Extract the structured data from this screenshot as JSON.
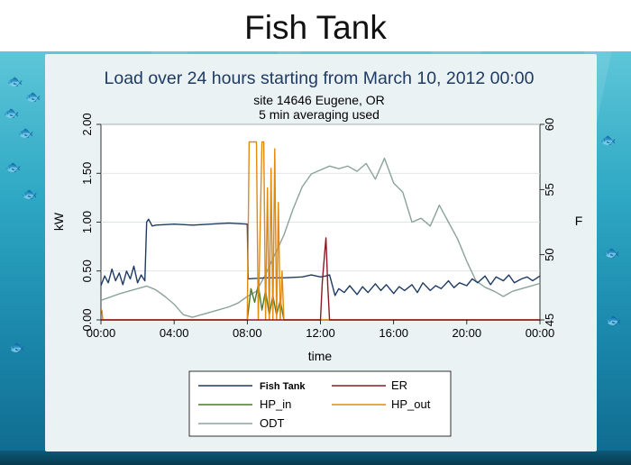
{
  "slide": {
    "title": "Fish Tank"
  },
  "chart_data": {
    "type": "line",
    "title": "Load over 24 hours starting from March 10, 2012 00:00",
    "subtitle_lines": [
      "site 14646  Eugene, OR",
      "5 min averaging used"
    ],
    "xlabel": "time",
    "ylabel": "kW",
    "y2label": "F",
    "xlim": [
      0,
      24
    ],
    "ylim": [
      0,
      2
    ],
    "y2lim": [
      45,
      60
    ],
    "x_ticks": [
      0,
      4,
      8,
      12,
      16,
      20,
      24
    ],
    "x_tick_labels": [
      "00:00",
      "04:00",
      "08:00",
      "12:00",
      "16:00",
      "20:00",
      "00:00"
    ],
    "y_ticks": [
      0,
      0.5,
      1,
      1.5,
      2
    ],
    "y_tick_labels": [
      "0.00",
      "0.50",
      "1.00",
      "1.50",
      "2.00"
    ],
    "y2_ticks": [
      45,
      50,
      55,
      60
    ],
    "y2_tick_labels": [
      "45",
      "50",
      "55",
      "60"
    ],
    "grid": true,
    "legend_placement": "bottom",
    "legend_entries": [
      "Fish Tank",
      "ER",
      "HP_in",
      "HP_out",
      "ODT"
    ],
    "colors": {
      "Fish Tank": "#1f3b63",
      "ER": "#8b1a24",
      "HP_in": "#4a7a2a",
      "HP_out": "#e08a10",
      "ODT": "#8aa39a"
    },
    "series": [
      {
        "name": "Fish Tank",
        "axis": "left",
        "x": [
          0,
          0.2,
          0.4,
          0.6,
          0.8,
          1.0,
          1.2,
          1.4,
          1.6,
          1.8,
          2.0,
          2.2,
          2.4,
          2.5,
          2.6,
          2.8,
          3,
          4,
          5,
          6,
          7,
          8,
          8.05,
          9,
          10,
          11,
          11.5,
          12,
          12.3,
          12.5,
          12.8,
          13,
          13.3,
          13.6,
          14,
          14.3,
          14.6,
          15,
          15.3,
          15.6,
          16,
          16.3,
          16.6,
          17,
          17.3,
          17.6,
          18,
          18.3,
          18.6,
          19,
          19.3,
          19.6,
          20,
          20.3,
          20.6,
          21,
          21.3,
          21.6,
          22,
          22.3,
          22.6,
          23,
          23.3,
          23.6,
          24
        ],
        "y": [
          0.35,
          0.45,
          0.38,
          0.52,
          0.4,
          0.48,
          0.36,
          0.5,
          0.42,
          0.55,
          0.38,
          0.46,
          0.4,
          1.0,
          1.03,
          0.96,
          0.97,
          0.98,
          0.97,
          0.98,
          0.99,
          0.98,
          0.42,
          0.43,
          0.43,
          0.44,
          0.46,
          0.44,
          0.45,
          0.46,
          0.25,
          0.32,
          0.28,
          0.35,
          0.26,
          0.34,
          0.28,
          0.37,
          0.3,
          0.36,
          0.27,
          0.34,
          0.3,
          0.36,
          0.28,
          0.38,
          0.3,
          0.35,
          0.32,
          0.4,
          0.33,
          0.38,
          0.35,
          0.42,
          0.38,
          0.45,
          0.36,
          0.44,
          0.4,
          0.46,
          0.38,
          0.42,
          0.44,
          0.4,
          0.45
        ]
      },
      {
        "name": "ER",
        "axis": "left",
        "x": [
          0,
          12,
          12.1,
          12.2,
          12.3,
          12.4,
          12.5,
          24
        ],
        "y": [
          0,
          0,
          0.38,
          0.62,
          0.84,
          0.35,
          0,
          0
        ]
      },
      {
        "name": "HP_in",
        "axis": "left",
        "x": [
          0,
          8,
          8.2,
          8.4,
          8.6,
          8.8,
          9,
          9.2,
          9.4,
          9.6,
          9.8,
          10,
          10.2,
          24
        ],
        "y": [
          0,
          0,
          0.32,
          0.18,
          0.36,
          0.1,
          0.3,
          0.05,
          0.25,
          0.05,
          0.2,
          0,
          0,
          0
        ]
      },
      {
        "name": "HP_out",
        "axis": "left",
        "x": [
          0,
          0.05,
          0.1,
          8.0,
          8.1,
          8.2,
          8.5,
          8.6,
          8.8,
          8.9,
          9.0,
          9.1,
          9.2,
          9.3,
          9.4,
          9.5,
          9.6,
          9.7,
          9.8,
          9.9,
          10.0,
          24
        ],
        "y": [
          0.1,
          0.1,
          0,
          0,
          1.82,
          1.82,
          1.82,
          0,
          1.82,
          1.82,
          0,
          1.35,
          0,
          1.55,
          0,
          1.75,
          0,
          1.2,
          0,
          0.5,
          0,
          0
        ]
      },
      {
        "name": "ODT",
        "axis": "right",
        "x": [
          0,
          1,
          2,
          2.5,
          3,
          3.5,
          4,
          4.5,
          5,
          5.5,
          6,
          6.5,
          7,
          7.5,
          8,
          8.5,
          9,
          9.5,
          10,
          10.5,
          11,
          11.5,
          12,
          12.5,
          13,
          13.5,
          14,
          14.5,
          15,
          15.5,
          16,
          16.5,
          17,
          17.5,
          18,
          18.5,
          19,
          19.5,
          20,
          20.5,
          21,
          21.5,
          22,
          22.5,
          23,
          23.5,
          24
        ],
        "y": [
          46.5,
          47,
          47.4,
          47.6,
          47.3,
          46.8,
          46.2,
          45.4,
          45.2,
          45.4,
          45.6,
          45.8,
          46.0,
          46.3,
          46.8,
          47.2,
          48.5,
          50.0,
          51.5,
          53.5,
          55.2,
          56.2,
          56.5,
          56.8,
          56.6,
          56.8,
          56.4,
          57.0,
          55.8,
          57.4,
          55.5,
          54.8,
          52.5,
          52.8,
          52.2,
          53.8,
          52.5,
          51.2,
          49.5,
          48.0,
          47.5,
          47.2,
          46.8,
          47.2,
          47.4,
          47.6,
          47.8
        ]
      }
    ]
  }
}
